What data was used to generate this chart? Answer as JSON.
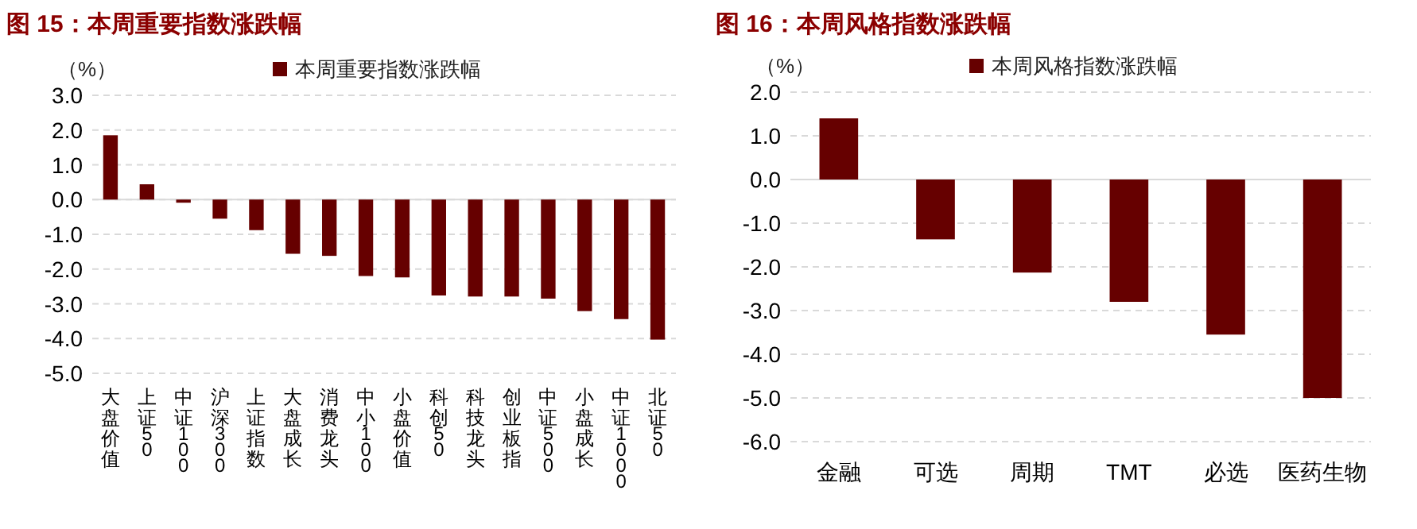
{
  "chart_data": [
    {
      "type": "bar",
      "title": "图 15：本周重要指数涨跌幅",
      "ylabel": "（%）",
      "categories": [
        "大盘价值",
        "上证50",
        "中证100",
        "沪深300",
        "上证指数",
        "大盘成长",
        "消费龙头",
        "中小100",
        "小盘价值",
        "科创50",
        "科技龙头",
        "创业板指",
        "中证500",
        "小盘成长",
        "中证1000",
        "北证50"
      ],
      "series": [
        {
          "name": "本周重要指数涨跌幅",
          "color": "#660000",
          "values": [
            1.85,
            0.44,
            -0.09,
            -0.55,
            -0.88,
            -1.56,
            -1.62,
            -2.2,
            -2.24,
            -2.76,
            -2.79,
            -2.79,
            -2.85,
            -3.21,
            -3.44,
            -4.03
          ]
        }
      ],
      "ylim": [
        -5,
        3
      ],
      "yticks": [
        {
          "value": -5,
          "label": "-5.0"
        },
        {
          "value": -4,
          "label": "-4.0"
        },
        {
          "value": -3,
          "label": "-3.0"
        },
        {
          "value": -2,
          "label": "-2.0"
        },
        {
          "value": -1,
          "label": "-1.0"
        },
        {
          "value": 0,
          "label": "0.0"
        },
        {
          "value": 1,
          "label": "1.0"
        },
        {
          "value": 2,
          "label": "2.0"
        },
        {
          "value": 3,
          "label": "3.0"
        }
      ],
      "grid": "y",
      "legend": "top"
    },
    {
      "type": "bar",
      "title": "图 16：本周风格指数涨跌幅",
      "ylabel": "（%）",
      "categories": [
        "金融",
        "可选",
        "周期",
        "TMT",
        "必选",
        "医药生物"
      ],
      "series": [
        {
          "name": "本周风格指数涨跌幅",
          "color": "#660000",
          "values": [
            1.4,
            -1.37,
            -2.13,
            -2.8,
            -3.55,
            -5.0
          ]
        }
      ],
      "ylim": [
        -6,
        2
      ],
      "yticks": [
        {
          "value": -6,
          "label": "-6.0"
        },
        {
          "value": -5,
          "label": "-5.0"
        },
        {
          "value": -4,
          "label": "-4.0"
        },
        {
          "value": -3,
          "label": "-3.0"
        },
        {
          "value": -2,
          "label": "-2.0"
        },
        {
          "value": -1,
          "label": "-1.0"
        },
        {
          "value": 0,
          "label": "0.0"
        },
        {
          "value": 1,
          "label": "1.0"
        },
        {
          "value": 2,
          "label": "2.0"
        }
      ],
      "grid": "y",
      "legend": "top"
    }
  ]
}
